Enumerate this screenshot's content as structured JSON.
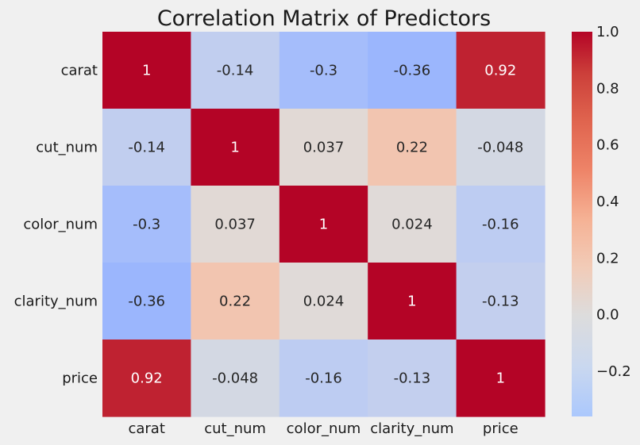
{
  "chart_data": {
    "type": "heatmap",
    "title": "Correlation Matrix of Predictors",
    "x_labels": [
      "carat",
      "cut_num",
      "color_num",
      "clarity_num",
      "price"
    ],
    "y_labels": [
      "carat",
      "cut_num",
      "color_num",
      "clarity_num",
      "price"
    ],
    "values": [
      [
        1,
        -0.14,
        -0.3,
        -0.36,
        0.92
      ],
      [
        -0.14,
        1,
        0.037,
        0.22,
        -0.048
      ],
      [
        -0.3,
        0.037,
        1,
        0.024,
        -0.16
      ],
      [
        -0.36,
        0.22,
        0.024,
        1,
        -0.13
      ],
      [
        0.92,
        -0.048,
        -0.16,
        -0.13,
        1
      ]
    ],
    "annotations": [
      [
        "1",
        "-0.14",
        "-0.3",
        "-0.36",
        "0.92"
      ],
      [
        "-0.14",
        "1",
        "0.037",
        "0.22",
        "-0.048"
      ],
      [
        "-0.3",
        "0.037",
        "1",
        "0.024",
        "-0.16"
      ],
      [
        "-0.36",
        "0.22",
        "0.024",
        "1",
        "-0.13"
      ],
      [
        "0.92",
        "-0.048",
        "-0.16",
        "-0.13",
        "1"
      ]
    ],
    "colormap": "coolwarm",
    "center": 0,
    "vmin": -0.36,
    "vmax": 1,
    "colorbar": {
      "ticks": [
        1.0,
        0.8,
        0.6,
        0.4,
        0.2,
        0.0,
        -0.2
      ],
      "tick_labels": [
        "1.0",
        "0.8",
        "0.6",
        "0.4",
        "0.2",
        "0.0",
        "−0.2"
      ]
    }
  }
}
